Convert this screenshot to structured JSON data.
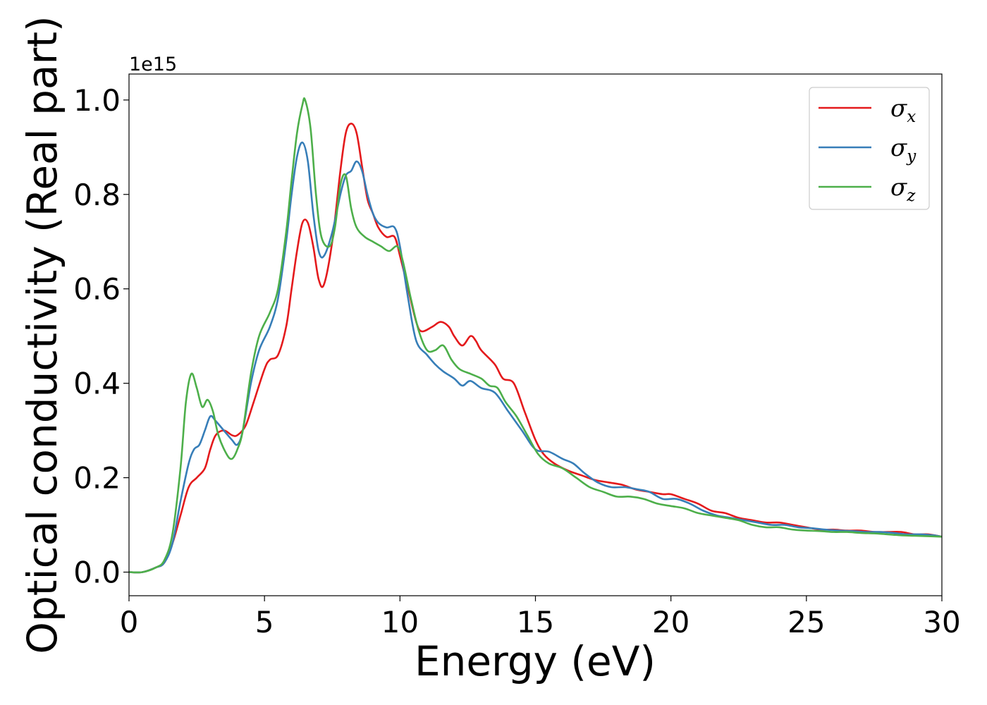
{
  "chart_data": {
    "type": "line",
    "title": "",
    "xlabel": "Energy (eV)",
    "ylabel": "Optical conductivity (Real part)",
    "y_offset_text": "1e15",
    "xlim": [
      0,
      30
    ],
    "ylim": [
      -0.05,
      1.055
    ],
    "xticks": [
      0,
      5,
      10,
      15,
      20,
      25,
      30
    ],
    "xtick_labels": [
      "0",
      "5",
      "10",
      "15",
      "20",
      "25",
      "30"
    ],
    "yticks": [
      0.0,
      0.2,
      0.4,
      0.6,
      0.8,
      1.0
    ],
    "ytick_labels": [
      "0.0",
      "0.2",
      "0.4",
      "0.6",
      "0.8",
      "1.0"
    ],
    "grid": false,
    "legend_position": "top-right",
    "series": [
      {
        "name": "σx",
        "symbol": "σ",
        "subscript": "x",
        "color": "#e41a1c",
        "points": [
          [
            0,
            0.0
          ],
          [
            0.5,
            0.0
          ],
          [
            1.0,
            0.01
          ],
          [
            1.3,
            0.02
          ],
          [
            1.6,
            0.06
          ],
          [
            1.9,
            0.12
          ],
          [
            2.2,
            0.18
          ],
          [
            2.5,
            0.2
          ],
          [
            2.8,
            0.22
          ],
          [
            3.0,
            0.26
          ],
          [
            3.2,
            0.29
          ],
          [
            3.5,
            0.3
          ],
          [
            3.8,
            0.29
          ],
          [
            4.0,
            0.29
          ],
          [
            4.3,
            0.31
          ],
          [
            4.6,
            0.36
          ],
          [
            5.0,
            0.43
          ],
          [
            5.2,
            0.45
          ],
          [
            5.5,
            0.46
          ],
          [
            5.8,
            0.52
          ],
          [
            6.0,
            0.6
          ],
          [
            6.2,
            0.68
          ],
          [
            6.4,
            0.74
          ],
          [
            6.6,
            0.74
          ],
          [
            6.8,
            0.69
          ],
          [
            7.0,
            0.62
          ],
          [
            7.2,
            0.61
          ],
          [
            7.5,
            0.7
          ],
          [
            7.8,
            0.85
          ],
          [
            8.0,
            0.93
          ],
          [
            8.2,
            0.95
          ],
          [
            8.4,
            0.93
          ],
          [
            8.6,
            0.86
          ],
          [
            8.8,
            0.79
          ],
          [
            9.0,
            0.76
          ],
          [
            9.2,
            0.73
          ],
          [
            9.5,
            0.71
          ],
          [
            9.8,
            0.71
          ],
          [
            10.0,
            0.67
          ],
          [
            10.3,
            0.6
          ],
          [
            10.6,
            0.53
          ],
          [
            10.8,
            0.51
          ],
          [
            11.2,
            0.52
          ],
          [
            11.5,
            0.53
          ],
          [
            11.8,
            0.52
          ],
          [
            12.0,
            0.5
          ],
          [
            12.3,
            0.48
          ],
          [
            12.6,
            0.5
          ],
          [
            12.8,
            0.49
          ],
          [
            13.0,
            0.47
          ],
          [
            13.5,
            0.44
          ],
          [
            13.8,
            0.41
          ],
          [
            14.2,
            0.4
          ],
          [
            14.6,
            0.34
          ],
          [
            15.0,
            0.28
          ],
          [
            15.3,
            0.25
          ],
          [
            15.7,
            0.23
          ],
          [
            16.2,
            0.215
          ],
          [
            16.7,
            0.205
          ],
          [
            17.2,
            0.195
          ],
          [
            17.7,
            0.19
          ],
          [
            18.2,
            0.185
          ],
          [
            18.7,
            0.175
          ],
          [
            19.2,
            0.17
          ],
          [
            19.7,
            0.165
          ],
          [
            20.0,
            0.165
          ],
          [
            20.5,
            0.155
          ],
          [
            21.0,
            0.145
          ],
          [
            21.5,
            0.13
          ],
          [
            22.0,
            0.125
          ],
          [
            22.5,
            0.115
          ],
          [
            23.0,
            0.11
          ],
          [
            23.5,
            0.105
          ],
          [
            24.0,
            0.105
          ],
          [
            24.5,
            0.1
          ],
          [
            25.0,
            0.095
          ],
          [
            25.5,
            0.09
          ],
          [
            26.0,
            0.09
          ],
          [
            26.5,
            0.088
          ],
          [
            27.0,
            0.088
          ],
          [
            27.5,
            0.085
          ],
          [
            28.0,
            0.085
          ],
          [
            28.5,
            0.085
          ],
          [
            29.0,
            0.08
          ],
          [
            29.5,
            0.08
          ],
          [
            30.0,
            0.075
          ]
        ]
      },
      {
        "name": "σy",
        "symbol": "σ",
        "subscript": "y",
        "color": "#377eb8",
        "points": [
          [
            0,
            0.0
          ],
          [
            0.5,
            0.0
          ],
          [
            1.0,
            0.01
          ],
          [
            1.3,
            0.02
          ],
          [
            1.6,
            0.06
          ],
          [
            1.9,
            0.15
          ],
          [
            2.2,
            0.23
          ],
          [
            2.4,
            0.26
          ],
          [
            2.6,
            0.27
          ],
          [
            2.8,
            0.3
          ],
          [
            3.0,
            0.33
          ],
          [
            3.2,
            0.32
          ],
          [
            3.5,
            0.3
          ],
          [
            3.8,
            0.28
          ],
          [
            4.0,
            0.27
          ],
          [
            4.2,
            0.3
          ],
          [
            4.5,
            0.4
          ],
          [
            4.8,
            0.47
          ],
          [
            5.2,
            0.52
          ],
          [
            5.5,
            0.58
          ],
          [
            5.8,
            0.7
          ],
          [
            6.0,
            0.8
          ],
          [
            6.2,
            0.88
          ],
          [
            6.4,
            0.91
          ],
          [
            6.6,
            0.87
          ],
          [
            6.8,
            0.76
          ],
          [
            7.0,
            0.68
          ],
          [
            7.2,
            0.67
          ],
          [
            7.5,
            0.72
          ],
          [
            7.8,
            0.8
          ],
          [
            8.0,
            0.84
          ],
          [
            8.2,
            0.85
          ],
          [
            8.4,
            0.87
          ],
          [
            8.6,
            0.85
          ],
          [
            8.8,
            0.8
          ],
          [
            9.0,
            0.76
          ],
          [
            9.2,
            0.74
          ],
          [
            9.5,
            0.73
          ],
          [
            9.8,
            0.73
          ],
          [
            10.0,
            0.69
          ],
          [
            10.3,
            0.58
          ],
          [
            10.6,
            0.49
          ],
          [
            11.0,
            0.46
          ],
          [
            11.3,
            0.44
          ],
          [
            11.6,
            0.425
          ],
          [
            12.0,
            0.41
          ],
          [
            12.3,
            0.395
          ],
          [
            12.6,
            0.405
          ],
          [
            13.0,
            0.39
          ],
          [
            13.5,
            0.38
          ],
          [
            14.0,
            0.34
          ],
          [
            14.5,
            0.3
          ],
          [
            15.0,
            0.26
          ],
          [
            15.5,
            0.255
          ],
          [
            16.0,
            0.24
          ],
          [
            16.4,
            0.23
          ],
          [
            16.8,
            0.21
          ],
          [
            17.3,
            0.19
          ],
          [
            17.8,
            0.18
          ],
          [
            18.3,
            0.18
          ],
          [
            18.8,
            0.175
          ],
          [
            19.2,
            0.17
          ],
          [
            19.7,
            0.155
          ],
          [
            20.2,
            0.155
          ],
          [
            20.7,
            0.145
          ],
          [
            21.2,
            0.13
          ],
          [
            21.7,
            0.12
          ],
          [
            22.2,
            0.115
          ],
          [
            22.7,
            0.11
          ],
          [
            23.2,
            0.105
          ],
          [
            23.7,
            0.1
          ],
          [
            24.2,
            0.1
          ],
          [
            24.7,
            0.095
          ],
          [
            25.2,
            0.093
          ],
          [
            25.7,
            0.09
          ],
          [
            26.2,
            0.088
          ],
          [
            26.7,
            0.087
          ],
          [
            27.2,
            0.085
          ],
          [
            27.7,
            0.085
          ],
          [
            28.2,
            0.083
          ],
          [
            28.7,
            0.08
          ],
          [
            29.2,
            0.08
          ],
          [
            29.7,
            0.078
          ],
          [
            30.0,
            0.075
          ]
        ]
      },
      {
        "name": "σz",
        "symbol": "σ",
        "subscript": "z",
        "color": "#4daf4a",
        "points": [
          [
            0,
            0.0
          ],
          [
            0.5,
            0.0
          ],
          [
            1.0,
            0.01
          ],
          [
            1.3,
            0.025
          ],
          [
            1.6,
            0.08
          ],
          [
            1.9,
            0.22
          ],
          [
            2.1,
            0.36
          ],
          [
            2.3,
            0.42
          ],
          [
            2.5,
            0.39
          ],
          [
            2.7,
            0.35
          ],
          [
            2.9,
            0.365
          ],
          [
            3.1,
            0.34
          ],
          [
            3.3,
            0.29
          ],
          [
            3.6,
            0.25
          ],
          [
            3.8,
            0.24
          ],
          [
            4.0,
            0.26
          ],
          [
            4.2,
            0.3
          ],
          [
            4.5,
            0.42
          ],
          [
            4.8,
            0.5
          ],
          [
            5.2,
            0.55
          ],
          [
            5.5,
            0.6
          ],
          [
            5.8,
            0.72
          ],
          [
            6.0,
            0.83
          ],
          [
            6.2,
            0.93
          ],
          [
            6.4,
            0.99
          ],
          [
            6.5,
            1.0
          ],
          [
            6.7,
            0.94
          ],
          [
            6.9,
            0.8
          ],
          [
            7.1,
            0.71
          ],
          [
            7.4,
            0.69
          ],
          [
            7.6,
            0.73
          ],
          [
            7.8,
            0.82
          ],
          [
            8.0,
            0.84
          ],
          [
            8.2,
            0.77
          ],
          [
            8.4,
            0.73
          ],
          [
            8.7,
            0.71
          ],
          [
            9.0,
            0.7
          ],
          [
            9.3,
            0.69
          ],
          [
            9.6,
            0.68
          ],
          [
            9.9,
            0.69
          ],
          [
            10.1,
            0.66
          ],
          [
            10.4,
            0.58
          ],
          [
            10.7,
            0.51
          ],
          [
            11.0,
            0.47
          ],
          [
            11.3,
            0.47
          ],
          [
            11.6,
            0.48
          ],
          [
            11.9,
            0.45
          ],
          [
            12.2,
            0.43
          ],
          [
            12.6,
            0.42
          ],
          [
            13.0,
            0.41
          ],
          [
            13.3,
            0.395
          ],
          [
            13.6,
            0.39
          ],
          [
            13.9,
            0.36
          ],
          [
            14.3,
            0.33
          ],
          [
            14.7,
            0.29
          ],
          [
            15.1,
            0.25
          ],
          [
            15.5,
            0.23
          ],
          [
            16.0,
            0.22
          ],
          [
            16.5,
            0.2
          ],
          [
            17.0,
            0.18
          ],
          [
            17.5,
            0.17
          ],
          [
            18.0,
            0.16
          ],
          [
            18.5,
            0.16
          ],
          [
            19.0,
            0.155
          ],
          [
            19.5,
            0.145
          ],
          [
            20.0,
            0.14
          ],
          [
            20.5,
            0.135
          ],
          [
            21.0,
            0.125
          ],
          [
            21.5,
            0.12
          ],
          [
            22.0,
            0.115
          ],
          [
            22.5,
            0.11
          ],
          [
            23.0,
            0.1
          ],
          [
            23.5,
            0.095
          ],
          [
            24.0,
            0.095
          ],
          [
            24.5,
            0.09
          ],
          [
            25.0,
            0.088
          ],
          [
            25.5,
            0.087
          ],
          [
            26.0,
            0.085
          ],
          [
            26.5,
            0.085
          ],
          [
            27.0,
            0.083
          ],
          [
            27.5,
            0.082
          ],
          [
            28.0,
            0.08
          ],
          [
            28.5,
            0.078
          ],
          [
            29.0,
            0.077
          ],
          [
            29.5,
            0.076
          ],
          [
            30.0,
            0.075
          ]
        ]
      }
    ]
  }
}
